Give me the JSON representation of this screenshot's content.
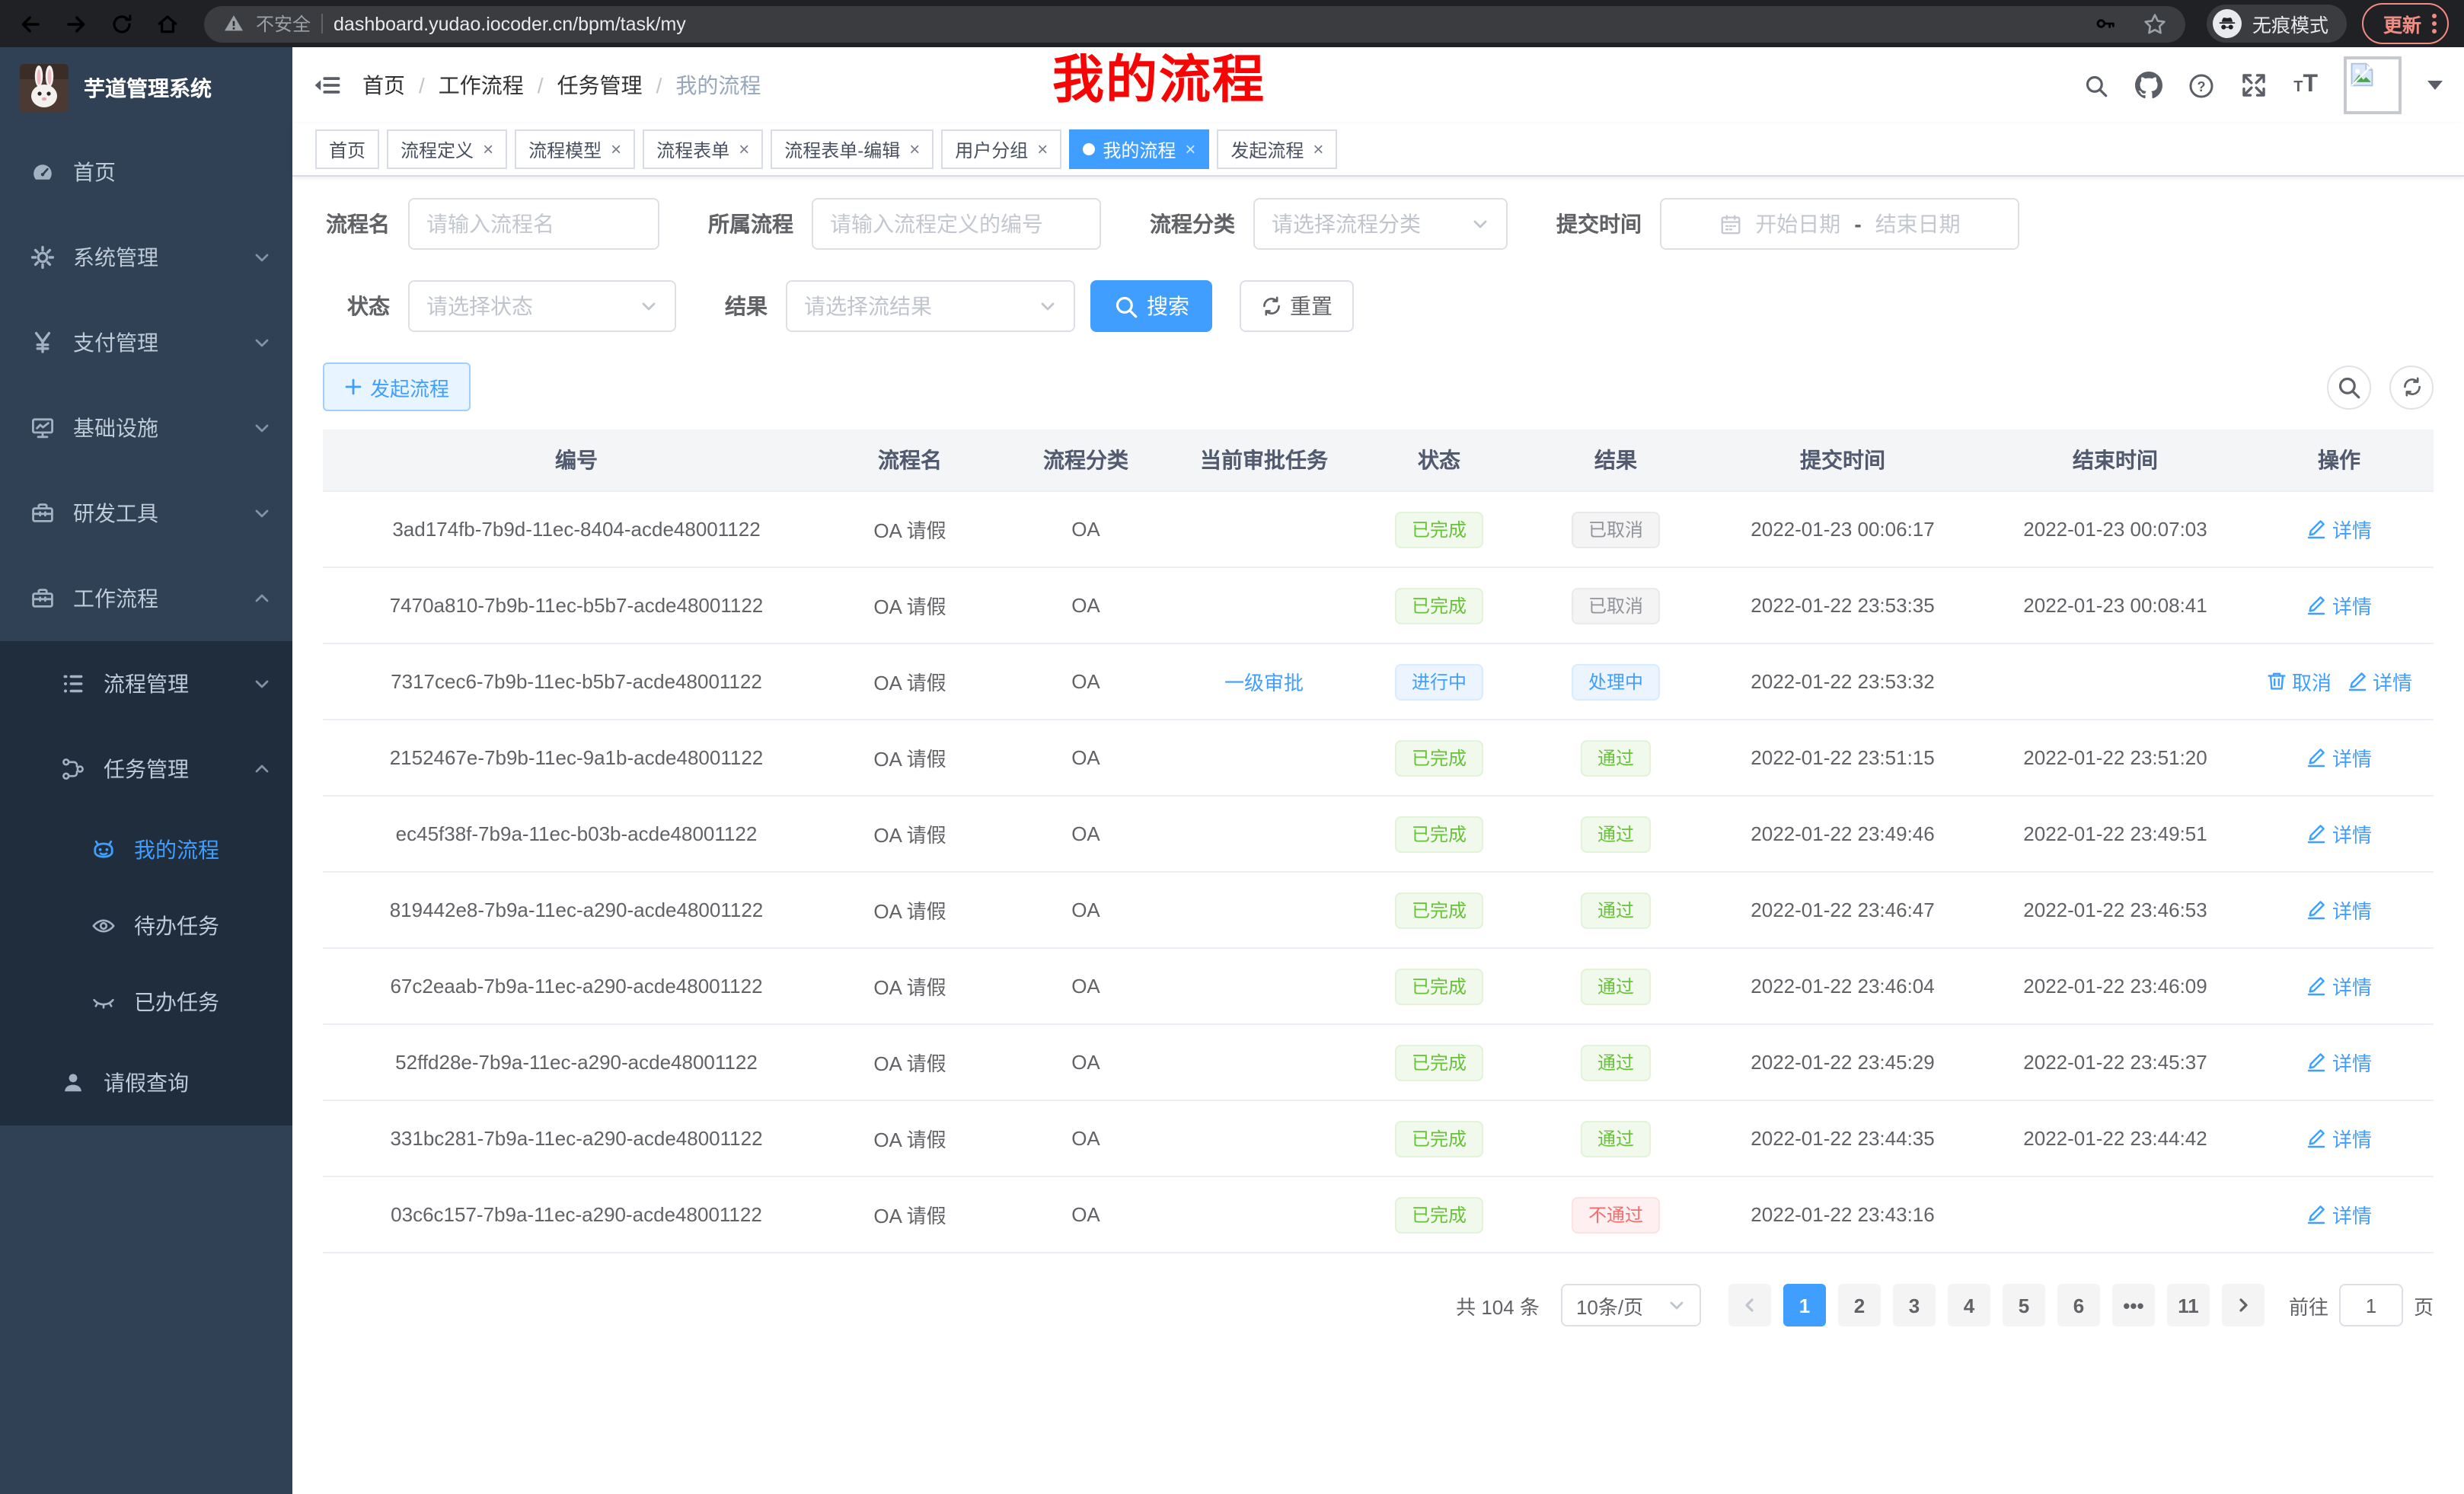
{
  "colors": {
    "accent": "#409eff",
    "success": "#67c23a",
    "danger": "#f56c6c",
    "info": "#909399",
    "annotation_red": "#f70505",
    "sidebar_bg": "#304156",
    "submenu_bg": "#1f2d3d"
  },
  "browser": {
    "security_label": "不安全",
    "url": "dashboard.yudao.iocoder.cn/bpm/task/my",
    "incognito_label": "无痕模式",
    "update_label": "更新"
  },
  "sidebar": {
    "app_title": "芋道管理系统",
    "menu": [
      {
        "key": "home",
        "label": "首页",
        "icon": "dashboard"
      },
      {
        "key": "system",
        "label": "系统管理",
        "icon": "gear",
        "chevron": "down"
      },
      {
        "key": "payment",
        "label": "支付管理",
        "icon": "yen",
        "chevron": "down"
      },
      {
        "key": "infra",
        "label": "基础设施",
        "icon": "monitor",
        "chevron": "down"
      },
      {
        "key": "devtools",
        "label": "研发工具",
        "icon": "toolbox",
        "chevron": "down"
      },
      {
        "key": "workflow",
        "label": "工作流程",
        "icon": "toolbox",
        "chevron": "up",
        "children": [
          {
            "key": "process-mgmt",
            "label": "流程管理",
            "icon": "tree",
            "chevron": "down"
          },
          {
            "key": "task-mgmt",
            "label": "任务管理",
            "icon": "flow",
            "chevron": "up",
            "children": [
              {
                "key": "my-process",
                "label": "我的流程",
                "icon": "robot",
                "active": true
              },
              {
                "key": "todo-tasks",
                "label": "待办任务",
                "icon": "eye"
              },
              {
                "key": "done-tasks",
                "label": "已办任务",
                "icon": "eyeclosed"
              }
            ]
          },
          {
            "key": "leave-query",
            "label": "请假查询",
            "icon": "user"
          }
        ]
      }
    ]
  },
  "header": {
    "breadcrumb": [
      "首页",
      "工作流程",
      "任务管理",
      "我的流程"
    ],
    "annotation": "我的流程"
  },
  "tabs": [
    {
      "key": "home",
      "label": "首页",
      "closable": false
    },
    {
      "key": "process-definition",
      "label": "流程定义",
      "closable": true
    },
    {
      "key": "process-model",
      "label": "流程模型",
      "closable": true
    },
    {
      "key": "process-form",
      "label": "流程表单",
      "closable": true
    },
    {
      "key": "process-form-edit",
      "label": "流程表单-编辑",
      "closable": true
    },
    {
      "key": "user-group",
      "label": "用户分组",
      "closable": true
    },
    {
      "key": "my-process",
      "label": "我的流程",
      "closable": true,
      "active": true
    },
    {
      "key": "start-process",
      "label": "发起流程",
      "closable": true
    }
  ],
  "filters": {
    "process_name": {
      "label": "流程名",
      "placeholder": "请输入流程名"
    },
    "process_def": {
      "label": "所属流程",
      "placeholder": "请输入流程定义的编号"
    },
    "category": {
      "label": "流程分类",
      "placeholder": "请选择流程分类"
    },
    "submit_time": {
      "label": "提交时间",
      "start_placeholder": "开始日期",
      "separator": "-",
      "end_placeholder": "结束日期"
    },
    "status": {
      "label": "状态",
      "placeholder": "请选择状态"
    },
    "result": {
      "label": "结果",
      "placeholder": "请选择流结果"
    },
    "search_button": "搜索",
    "reset_button": "重置"
  },
  "toolbar": {
    "create_button": "发起流程"
  },
  "table": {
    "columns": [
      "编号",
      "流程名",
      "流程分类",
      "当前审批任务",
      "状态",
      "结果",
      "提交时间",
      "结束时间",
      "操作"
    ],
    "rows": [
      {
        "id": "3ad174fb-7b9d-11ec-8404-acde48001122",
        "name": "OA 请假",
        "category": "OA",
        "task": "",
        "status": {
          "label": "已完成",
          "type": "success"
        },
        "result": {
          "label": "已取消",
          "type": "info"
        },
        "submit_time": "2022-01-23 00:06:17",
        "end_time": "2022-01-23 00:07:03",
        "actions": [
          {
            "key": "detail",
            "label": "详情",
            "icon": "edit"
          }
        ]
      },
      {
        "id": "7470a810-7b9b-11ec-b5b7-acde48001122",
        "name": "OA 请假",
        "category": "OA",
        "task": "",
        "status": {
          "label": "已完成",
          "type": "success"
        },
        "result": {
          "label": "已取消",
          "type": "info"
        },
        "submit_time": "2022-01-22 23:53:35",
        "end_time": "2022-01-23 00:08:41",
        "actions": [
          {
            "key": "detail",
            "label": "详情",
            "icon": "edit"
          }
        ]
      },
      {
        "id": "7317cec6-7b9b-11ec-b5b7-acde48001122",
        "name": "OA 请假",
        "category": "OA",
        "task": "一级审批",
        "status": {
          "label": "进行中",
          "type": "primary"
        },
        "result": {
          "label": "处理中",
          "type": "primary"
        },
        "submit_time": "2022-01-22 23:53:32",
        "end_time": "",
        "actions": [
          {
            "key": "cancel",
            "label": "取消",
            "icon": "trash"
          },
          {
            "key": "detail",
            "label": "详情",
            "icon": "edit"
          }
        ]
      },
      {
        "id": "2152467e-7b9b-11ec-9a1b-acde48001122",
        "name": "OA 请假",
        "category": "OA",
        "task": "",
        "status": {
          "label": "已完成",
          "type": "success"
        },
        "result": {
          "label": "通过",
          "type": "success"
        },
        "submit_time": "2022-01-22 23:51:15",
        "end_time": "2022-01-22 23:51:20",
        "actions": [
          {
            "key": "detail",
            "label": "详情",
            "icon": "edit"
          }
        ]
      },
      {
        "id": "ec45f38f-7b9a-11ec-b03b-acde48001122",
        "name": "OA 请假",
        "category": "OA",
        "task": "",
        "status": {
          "label": "已完成",
          "type": "success"
        },
        "result": {
          "label": "通过",
          "type": "success"
        },
        "submit_time": "2022-01-22 23:49:46",
        "end_time": "2022-01-22 23:49:51",
        "actions": [
          {
            "key": "detail",
            "label": "详情",
            "icon": "edit"
          }
        ]
      },
      {
        "id": "819442e8-7b9a-11ec-a290-acde48001122",
        "name": "OA 请假",
        "category": "OA",
        "task": "",
        "status": {
          "label": "已完成",
          "type": "success"
        },
        "result": {
          "label": "通过",
          "type": "success"
        },
        "submit_time": "2022-01-22 23:46:47",
        "end_time": "2022-01-22 23:46:53",
        "actions": [
          {
            "key": "detail",
            "label": "详情",
            "icon": "edit"
          }
        ]
      },
      {
        "id": "67c2eaab-7b9a-11ec-a290-acde48001122",
        "name": "OA 请假",
        "category": "OA",
        "task": "",
        "status": {
          "label": "已完成",
          "type": "success"
        },
        "result": {
          "label": "通过",
          "type": "success"
        },
        "submit_time": "2022-01-22 23:46:04",
        "end_time": "2022-01-22 23:46:09",
        "actions": [
          {
            "key": "detail",
            "label": "详情",
            "icon": "edit"
          }
        ]
      },
      {
        "id": "52ffd28e-7b9a-11ec-a290-acde48001122",
        "name": "OA 请假",
        "category": "OA",
        "task": "",
        "status": {
          "label": "已完成",
          "type": "success"
        },
        "result": {
          "label": "通过",
          "type": "success"
        },
        "submit_time": "2022-01-22 23:45:29",
        "end_time": "2022-01-22 23:45:37",
        "actions": [
          {
            "key": "detail",
            "label": "详情",
            "icon": "edit"
          }
        ]
      },
      {
        "id": "331bc281-7b9a-11ec-a290-acde48001122",
        "name": "OA 请假",
        "category": "OA",
        "task": "",
        "status": {
          "label": "已完成",
          "type": "success"
        },
        "result": {
          "label": "通过",
          "type": "success"
        },
        "submit_time": "2022-01-22 23:44:35",
        "end_time": "2022-01-22 23:44:42",
        "actions": [
          {
            "key": "detail",
            "label": "详情",
            "icon": "edit"
          }
        ]
      },
      {
        "id": "03c6c157-7b9a-11ec-a290-acde48001122",
        "name": "OA 请假",
        "category": "OA",
        "task": "",
        "status": {
          "label": "已完成",
          "type": "success"
        },
        "result": {
          "label": "不通过",
          "type": "danger"
        },
        "submit_time": "2022-01-22 23:43:16",
        "end_time": "",
        "actions": [
          {
            "key": "detail",
            "label": "详情",
            "icon": "edit"
          }
        ]
      }
    ]
  },
  "pagination": {
    "total": "共 104 条",
    "page_size": "10条/页",
    "pages": [
      "1",
      "2",
      "3",
      "4",
      "5",
      "6",
      "•••",
      "11"
    ],
    "active_page": "1",
    "goto_label": "前往",
    "goto_value": "1",
    "goto_unit": "页"
  }
}
